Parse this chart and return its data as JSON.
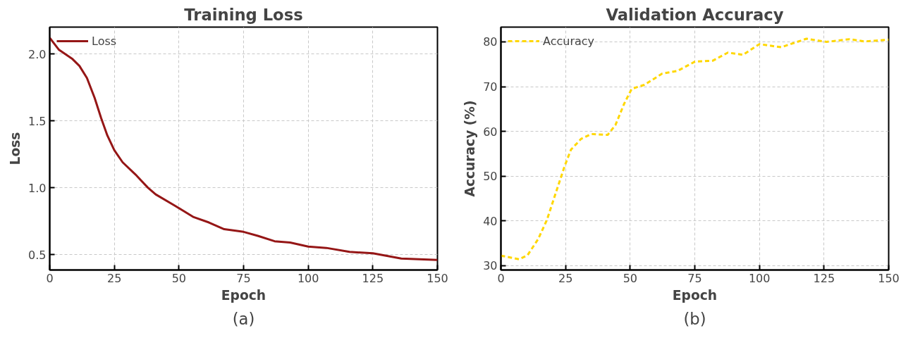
{
  "chart_data": [
    {
      "type": "line",
      "title": "Training Loss",
      "xlabel": "Epoch",
      "ylabel": "Loss",
      "annotations": [
        "(a)"
      ],
      "x": [
        0,
        3.6,
        8.6,
        11.5,
        14.4,
        17.4,
        19.9,
        22.3,
        25,
        28.2,
        33.1,
        38,
        41,
        48,
        55.7,
        61.6,
        67.5,
        75,
        80.5,
        87,
        93,
        100,
        107,
        116,
        125,
        136,
        150
      ],
      "series": [
        {
          "name": "Loss",
          "color": "#951616",
          "values": [
            2.12,
            2.03,
            1.965,
            1.91,
            1.82,
            1.67,
            1.52,
            1.39,
            1.28,
            1.19,
            1.1,
            1.0,
            0.95,
            0.87,
            0.78,
            0.74,
            0.69,
            0.67,
            0.64,
            0.6,
            0.59,
            0.56,
            0.55,
            0.52,
            0.51,
            0.47,
            0.46
          ]
        }
      ],
      "xlim": [
        0,
        150
      ],
      "ylim": [
        0.385,
        2.2
      ],
      "xticks": [
        0,
        25,
        50,
        75,
        100,
        125,
        150
      ],
      "yticks": [
        0.5,
        {
          "value": 1,
          "label": "1.0"
        },
        1.5,
        {
          "value": 2,
          "label": "2.0"
        }
      ],
      "grid": true,
      "legend": "top left",
      "line_style": "solid"
    },
    {
      "type": "line",
      "title": "Validation Accuracy",
      "xlabel": "Epoch",
      "ylabel": "Accuracy (%)",
      "annotations": [
        "(b)"
      ],
      "x": [
        0,
        3.6,
        7,
        10.3,
        14.4,
        17.8,
        21.2,
        24.7,
        27.1,
        31,
        35,
        41.3,
        44.3,
        47.7,
        50.6,
        55.5,
        62.4,
        68.3,
        75.1,
        82,
        87.8,
        93.7,
        100,
        108.4,
        118.2,
        126,
        134.8,
        140.7,
        150
      ],
      "series": [
        {
          "name": "Accuracy",
          "color": "#ffd700",
          "values": [
            32.2,
            31.8,
            31.4,
            32.3,
            35.9,
            40.2,
            46.2,
            52.3,
            55.9,
            58.3,
            59.4,
            59.2,
            61.4,
            66.2,
            69.5,
            70.4,
            72.9,
            73.5,
            75.6,
            75.8,
            77.6,
            77.1,
            79.5,
            78.8,
            80.7,
            80,
            80.6,
            80.1,
            80.5
          ]
        }
      ],
      "xlim": [
        0,
        150
      ],
      "ylim": [
        29,
        83.3
      ],
      "xticks": [
        0,
        25,
        50,
        75,
        100,
        125,
        150
      ],
      "yticks": [
        30,
        40,
        50,
        60,
        70,
        80
      ],
      "grid": true,
      "legend": "top left",
      "line_style": "dashed"
    }
  ]
}
